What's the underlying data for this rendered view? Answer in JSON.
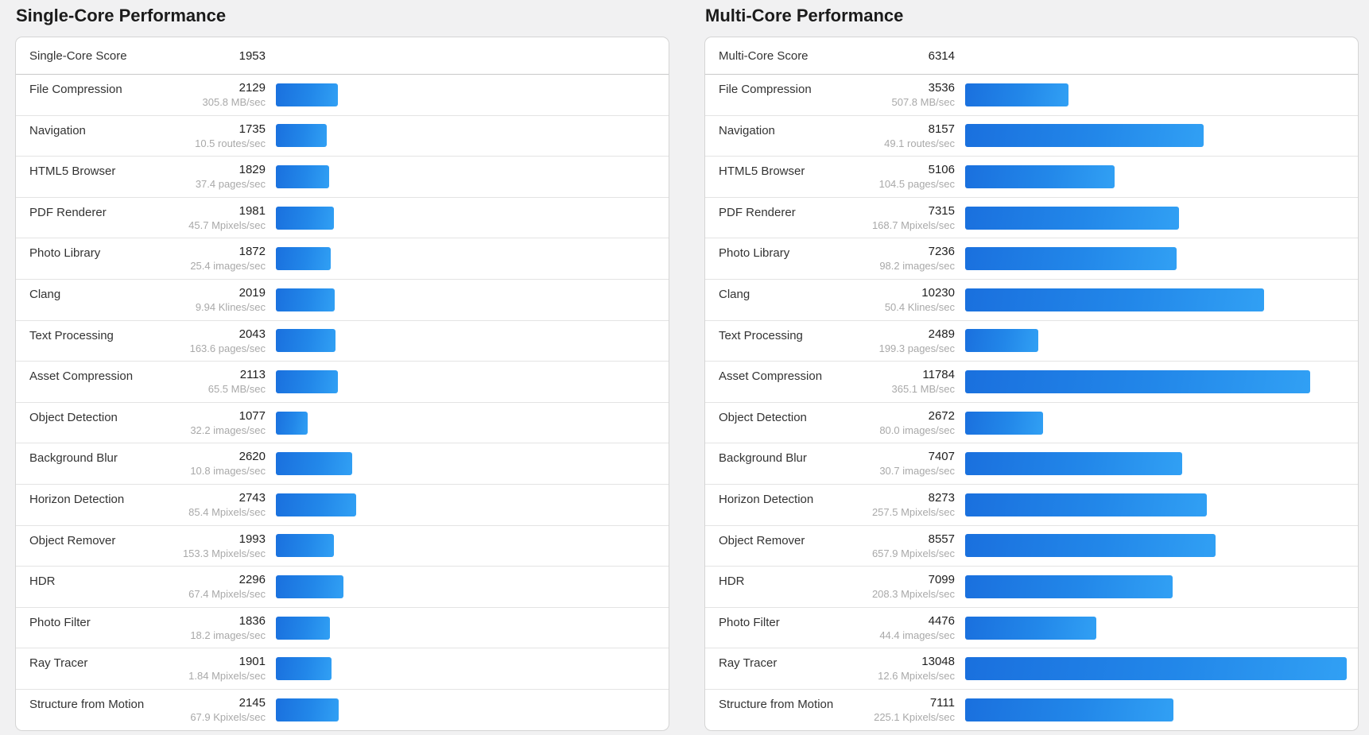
{
  "colors": {
    "bar_gradient_start": "#1a70de",
    "bar_gradient_end": "#31a0f4",
    "page_background": "#f1f1f2",
    "rate_text": "#a9a9a9"
  },
  "panels": [
    {
      "title": "Single-Core Performance",
      "score_label": "Single-Core Score",
      "score": "1953",
      "rows": [
        {
          "label": "File Compression",
          "score": 2129,
          "rate": "305.8 MB/sec"
        },
        {
          "label": "Navigation",
          "score": 1735,
          "rate": "10.5 routes/sec"
        },
        {
          "label": "HTML5 Browser",
          "score": 1829,
          "rate": "37.4 pages/sec"
        },
        {
          "label": "PDF Renderer",
          "score": 1981,
          "rate": "45.7 Mpixels/sec"
        },
        {
          "label": "Photo Library",
          "score": 1872,
          "rate": "25.4 images/sec"
        },
        {
          "label": "Clang",
          "score": 2019,
          "rate": "9.94 Klines/sec"
        },
        {
          "label": "Text Processing",
          "score": 2043,
          "rate": "163.6 pages/sec"
        },
        {
          "label": "Asset Compression",
          "score": 2113,
          "rate": "65.5 MB/sec"
        },
        {
          "label": "Object Detection",
          "score": 1077,
          "rate": "32.2 images/sec"
        },
        {
          "label": "Background Blur",
          "score": 2620,
          "rate": "10.8 images/sec"
        },
        {
          "label": "Horizon Detection",
          "score": 2743,
          "rate": "85.4 Mpixels/sec"
        },
        {
          "label": "Object Remover",
          "score": 1993,
          "rate": "153.3 Mpixels/sec"
        },
        {
          "label": "HDR",
          "score": 2296,
          "rate": "67.4 Mpixels/sec"
        },
        {
          "label": "Photo Filter",
          "score": 1836,
          "rate": "18.2 images/sec"
        },
        {
          "label": "Ray Tracer",
          "score": 1901,
          "rate": "1.84 Mpixels/sec"
        },
        {
          "label": "Structure from Motion",
          "score": 2145,
          "rate": "67.9 Kpixels/sec"
        }
      ]
    },
    {
      "title": "Multi-Core Performance",
      "score_label": "Multi-Core Score",
      "score": "6314",
      "rows": [
        {
          "label": "File Compression",
          "score": 3536,
          "rate": "507.8 MB/sec"
        },
        {
          "label": "Navigation",
          "score": 8157,
          "rate": "49.1 routes/sec"
        },
        {
          "label": "HTML5 Browser",
          "score": 5106,
          "rate": "104.5 pages/sec"
        },
        {
          "label": "PDF Renderer",
          "score": 7315,
          "rate": "168.7 Mpixels/sec"
        },
        {
          "label": "Photo Library",
          "score": 7236,
          "rate": "98.2 images/sec"
        },
        {
          "label": "Clang",
          "score": 10230,
          "rate": "50.4 Klines/sec"
        },
        {
          "label": "Text Processing",
          "score": 2489,
          "rate": "199.3 pages/sec"
        },
        {
          "label": "Asset Compression",
          "score": 11784,
          "rate": "365.1 MB/sec"
        },
        {
          "label": "Object Detection",
          "score": 2672,
          "rate": "80.0 images/sec"
        },
        {
          "label": "Background Blur",
          "score": 7407,
          "rate": "30.7 images/sec"
        },
        {
          "label": "Horizon Detection",
          "score": 8273,
          "rate": "257.5 Mpixels/sec"
        },
        {
          "label": "Object Remover",
          "score": 8557,
          "rate": "657.9 Mpixels/sec"
        },
        {
          "label": "HDR",
          "score": 7099,
          "rate": "208.3 Mpixels/sec"
        },
        {
          "label": "Photo Filter",
          "score": 4476,
          "rate": "44.4 images/sec"
        },
        {
          "label": "Ray Tracer",
          "score": 13048,
          "rate": "12.6 Mpixels/sec"
        },
        {
          "label": "Structure from Motion",
          "score": 7111,
          "rate": "225.1 Kpixels/sec"
        }
      ]
    }
  ],
  "chart_data": [
    {
      "type": "bar",
      "title": "Single-Core Performance",
      "orientation": "horizontal",
      "overall_score": 1953,
      "categories": [
        "File Compression",
        "Navigation",
        "HTML5 Browser",
        "PDF Renderer",
        "Photo Library",
        "Clang",
        "Text Processing",
        "Asset Compression",
        "Object Detection",
        "Background Blur",
        "Horizon Detection",
        "Object Remover",
        "HDR",
        "Photo Filter",
        "Ray Tracer",
        "Structure from Motion"
      ],
      "values": [
        2129,
        1735,
        1829,
        1981,
        1872,
        2019,
        2043,
        2113,
        1077,
        2620,
        2743,
        1993,
        2296,
        1836,
        1901,
        2145
      ],
      "rate_labels": [
        "305.8 MB/sec",
        "10.5 routes/sec",
        "37.4 pages/sec",
        "45.7 Mpixels/sec",
        "25.4 images/sec",
        "9.94 Klines/sec",
        "163.6 pages/sec",
        "65.5 MB/sec",
        "32.2 images/sec",
        "10.8 images/sec",
        "85.4 Mpixels/sec",
        "153.3 Mpixels/sec",
        "67.4 Mpixels/sec",
        "18.2 images/sec",
        "1.84 Mpixels/sec",
        "67.9 Kpixels/sec"
      ],
      "xlabel": "",
      "ylabel": "",
      "xlim": [
        0,
        13048
      ],
      "grid": false,
      "legend": false
    },
    {
      "type": "bar",
      "title": "Multi-Core Performance",
      "orientation": "horizontal",
      "overall_score": 6314,
      "categories": [
        "File Compression",
        "Navigation",
        "HTML5 Browser",
        "PDF Renderer",
        "Photo Library",
        "Clang",
        "Text Processing",
        "Asset Compression",
        "Object Detection",
        "Background Blur",
        "Horizon Detection",
        "Object Remover",
        "HDR",
        "Photo Filter",
        "Ray Tracer",
        "Structure from Motion"
      ],
      "values": [
        3536,
        8157,
        5106,
        7315,
        7236,
        10230,
        2489,
        11784,
        2672,
        7407,
        8273,
        8557,
        7099,
        4476,
        13048,
        7111
      ],
      "rate_labels": [
        "507.8 MB/sec",
        "49.1 routes/sec",
        "104.5 pages/sec",
        "168.7 Mpixels/sec",
        "98.2 images/sec",
        "50.4 Klines/sec",
        "199.3 pages/sec",
        "365.1 MB/sec",
        "80.0 images/sec",
        "30.7 images/sec",
        "257.5 Mpixels/sec",
        "657.9 Mpixels/sec",
        "208.3 Mpixels/sec",
        "44.4 images/sec",
        "12.6 Mpixels/sec",
        "225.1 Kpixels/sec"
      ],
      "xlabel": "",
      "ylabel": "",
      "xlim": [
        0,
        13048
      ],
      "grid": false,
      "legend": false
    }
  ]
}
